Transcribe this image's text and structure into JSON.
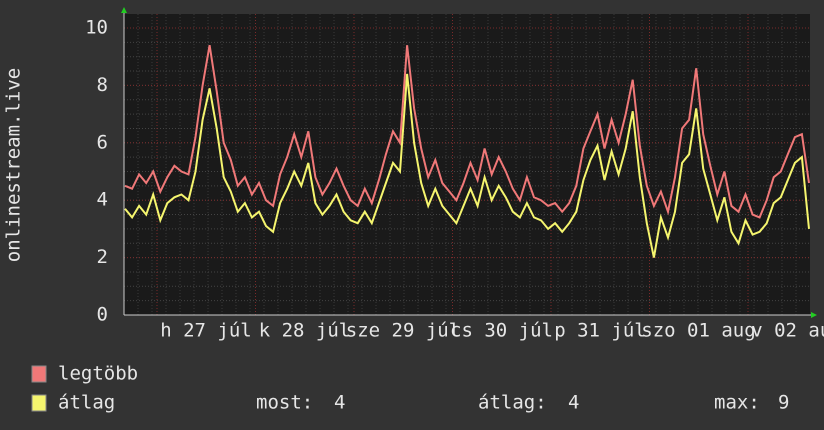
{
  "chart_data": {
    "type": "line",
    "y_label": "onlinestream.live",
    "x_labels": [
      "h 27 júl",
      "k 28 júl",
      "sze 29 júl",
      "cs 30 júl",
      "p 31 júl",
      "szo 01 aug",
      "v 02 aug"
    ],
    "ylim": [
      0,
      10
    ],
    "yticks": [
      0,
      2,
      4,
      6,
      8,
      10
    ],
    "grid": true,
    "series": [
      {
        "name": "legtöbb",
        "color": "#f07878",
        "values": [
          4.5,
          4.4,
          4.9,
          4.6,
          5.0,
          4.3,
          4.8,
          5.2,
          5.0,
          4.9,
          6.2,
          8.0,
          9.4,
          7.8,
          6.0,
          5.4,
          4.5,
          4.8,
          4.2,
          4.6,
          4.0,
          3.8,
          4.9,
          5.5,
          6.3,
          5.5,
          6.4,
          4.8,
          4.2,
          4.6,
          5.1,
          4.5,
          4.0,
          3.8,
          4.4,
          3.9,
          4.7,
          5.6,
          6.4,
          6.0,
          9.4,
          7.2,
          5.8,
          4.8,
          5.4,
          4.6,
          4.3,
          4.0,
          4.6,
          5.3,
          4.7,
          5.8,
          4.9,
          5.5,
          5.0,
          4.4,
          4.0,
          4.8,
          4.1,
          4.0,
          3.8,
          3.9,
          3.6,
          3.9,
          4.5,
          5.8,
          6.4,
          7.0,
          5.8,
          6.8,
          6.0,
          7.0,
          8.2,
          5.9,
          4.5,
          3.8,
          4.3,
          3.6,
          4.8,
          6.5,
          6.8,
          8.6,
          6.3,
          5.2,
          4.2,
          5.0,
          3.8,
          3.6,
          4.2,
          3.5,
          3.4,
          4.0,
          4.8,
          5.0,
          5.6,
          6.2,
          6.3,
          4.6
        ]
      },
      {
        "name": "átlag",
        "color": "#f5f56e",
        "values": [
          3.7,
          3.4,
          3.8,
          3.5,
          4.2,
          3.3,
          3.9,
          4.1,
          4.2,
          4.0,
          5.0,
          6.8,
          7.9,
          6.5,
          4.8,
          4.3,
          3.6,
          3.9,
          3.4,
          3.6,
          3.1,
          2.9,
          3.9,
          4.4,
          5.0,
          4.5,
          5.3,
          3.9,
          3.5,
          3.8,
          4.2,
          3.6,
          3.3,
          3.2,
          3.6,
          3.2,
          3.9,
          4.6,
          5.3,
          5.0,
          8.4,
          6.0,
          4.6,
          3.8,
          4.4,
          3.8,
          3.5,
          3.2,
          3.8,
          4.4,
          3.8,
          4.8,
          4.0,
          4.5,
          4.1,
          3.6,
          3.4,
          3.9,
          3.4,
          3.3,
          3.0,
          3.2,
          2.9,
          3.2,
          3.6,
          4.7,
          5.4,
          5.9,
          4.7,
          5.7,
          4.9,
          5.8,
          7.1,
          4.8,
          3.2,
          2.0,
          3.4,
          2.7,
          3.6,
          5.3,
          5.6,
          7.2,
          5.1,
          4.2,
          3.3,
          4.1,
          2.9,
          2.5,
          3.3,
          2.8,
          2.9,
          3.2,
          3.9,
          4.1,
          4.7,
          5.3,
          5.5,
          3.0
        ]
      }
    ],
    "stats": [
      {
        "label": "most:",
        "value": 4
      },
      {
        "label": "átlag:",
        "value": 4
      },
      {
        "label": "max:",
        "value": 9
      }
    ]
  }
}
